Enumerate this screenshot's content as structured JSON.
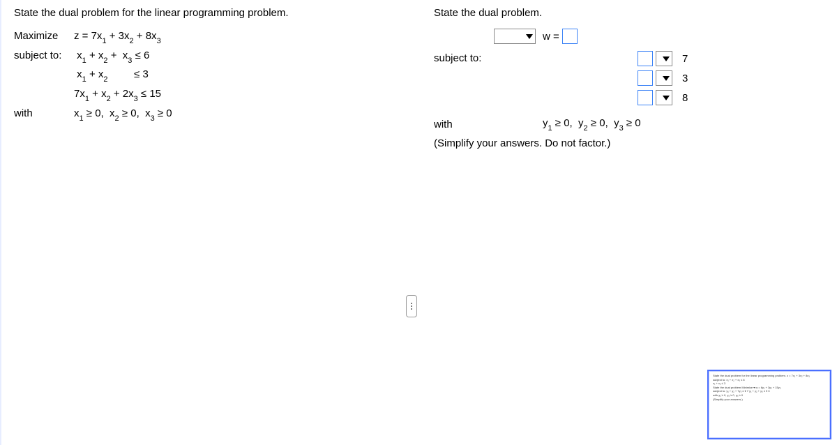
{
  "colors": {
    "text": "#000000",
    "background": "#ffffff",
    "input_border": "#3b82f6",
    "select_border": "#888888",
    "thumb_border": "#4a6fff"
  },
  "left": {
    "heading": "State the dual problem for the linear programming problem.",
    "rows": [
      {
        "label": "Maximize",
        "expr_html": "z = 7x<sub>1</sub> + 3x<sub>2</sub> + 8x<sub>3</sub>"
      },
      {
        "label": "subject to:",
        "expr_html": "&nbsp;x<sub>1</sub> + x<sub>2</sub> +&nbsp;&nbsp;x<sub>3</sub> ≤ 6"
      },
      {
        "label": "",
        "expr_html": "&nbsp;x<sub>1</sub> + x<sub>2</sub>&nbsp;&nbsp;&nbsp;&nbsp;&nbsp;&nbsp;&nbsp;&nbsp;&nbsp;≤ 3"
      },
      {
        "label": "",
        "expr_html": "7x<sub>1</sub> + x<sub>2</sub> + 2x<sub>3</sub> ≤ 15"
      },
      {
        "label": "with",
        "expr_html": "x<sub>1</sub> ≥ 0,&nbsp;&nbsp;x<sub>2</sub> ≥ 0,&nbsp;&nbsp;x<sub>3</sub> ≥ 0"
      }
    ]
  },
  "right": {
    "heading": "State the dual problem.",
    "w_label": "w =",
    "subject_label": "subject to:",
    "rhs": [
      "7",
      "3",
      "8"
    ],
    "with_label": "with",
    "with_expr_html": "y<sub>1</sub> ≥ 0,&nbsp;&nbsp;y<sub>2</sub> ≥ 0,&nbsp;&nbsp;y<sub>3</sub> ≥ 0",
    "note": "(Simplify your answers. Do not factor.)"
  },
  "thumb": {
    "lines": [
      "State the dual problem for the linear programming problem.      z = 7x₁ + 3x₂ + 8x₃",
      "                                                           subject to:  x₁ + x₂ + x₃ ≤ 6",
      "                                                                        x₁ + x₂      ≤ 3",
      "",
      "State the dual problem  Minimize ▾  w = 6y₁ + 3y₂ + 15y₃",
      "  subject to:  y₁ + y₂ + 7y₃  ≥ ▾ 7     y₁ + y₂ + y₃  ≥ ▾ 3",
      "  with  y₁ ≥ 0, y₂ ≥ 0, y₃ ≥ 0",
      "(Simplify your answers.)"
    ]
  }
}
